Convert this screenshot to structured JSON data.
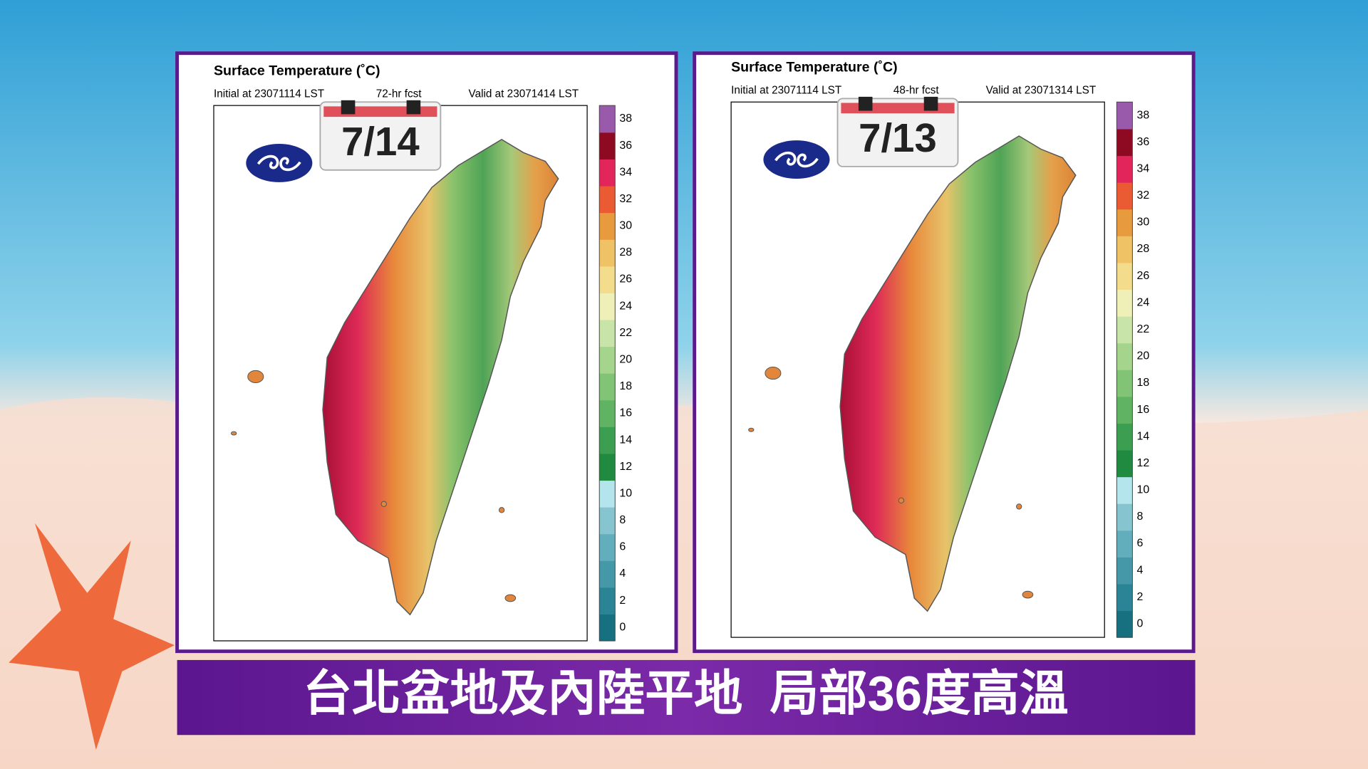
{
  "colorbar": {
    "ticks": [
      0,
      2,
      4,
      6,
      8,
      10,
      12,
      14,
      16,
      18,
      20,
      22,
      24,
      26,
      28,
      30,
      32,
      34,
      36,
      38
    ],
    "colors": [
      "#17707f",
      "#2a8495",
      "#4598a8",
      "#63aebc",
      "#86c5d0",
      "#b4e4ec",
      "#1f8a40",
      "#3c9e50",
      "#5fb362",
      "#81c476",
      "#a5d48c",
      "#c9e4a8",
      "#eef0b8",
      "#f3dc8c",
      "#efc266",
      "#e89a3e",
      "#ea5a33",
      "#e2255b",
      "#8e0a22",
      "#9a5aac"
    ]
  },
  "panels": [
    {
      "title": "Surface Temperature (˚C)",
      "initial": "Initial at 23071114 LST",
      "forecast": "72-hr fcst",
      "valid": "Valid at 23071414 LST",
      "date": "7/14"
    },
    {
      "title": "Surface Temperature (˚C)",
      "initial": "Initial at 23071114 LST",
      "forecast": "48-hr fcst",
      "valid": "Valid at 23071314 LST",
      "date": "7/13"
    }
  ],
  "caption": "台北盆地及內陸平地  局部36度高溫"
}
